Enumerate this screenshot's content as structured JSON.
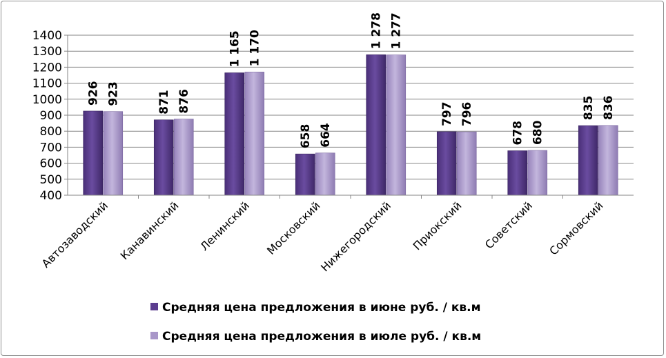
{
  "chart_data": {
    "type": "bar",
    "categories": [
      "Автозаводский",
      "Канавинский",
      "Ленинский",
      "Московский",
      "Нижегородский",
      "Приокский",
      "Советский",
      "Сормовский"
    ],
    "series": [
      {
        "name": "Средняя цена предложения в июне руб. / кв.м",
        "values": [
          926,
          871,
          1165,
          658,
          1278,
          797,
          678,
          835
        ],
        "labels": [
          "926",
          "871",
          "1 165",
          "658",
          "1 278",
          "797",
          "678",
          "835"
        ],
        "color": "#5b3d8f"
      },
      {
        "name": "Средняя цена предложения в июле руб. / кв.м",
        "values": [
          923,
          876,
          1170,
          664,
          1277,
          796,
          680,
          836
        ],
        "labels": [
          "923",
          "876",
          "1 170",
          "664",
          "1 277",
          "796",
          "680",
          "836"
        ],
        "color": "#a896c8"
      }
    ],
    "ylim": [
      400,
      1400
    ],
    "yticks": [
      400,
      500,
      600,
      700,
      800,
      900,
      1000,
      1100,
      1200,
      1300,
      1400
    ],
    "grid": true,
    "legend_position": "bottom"
  }
}
